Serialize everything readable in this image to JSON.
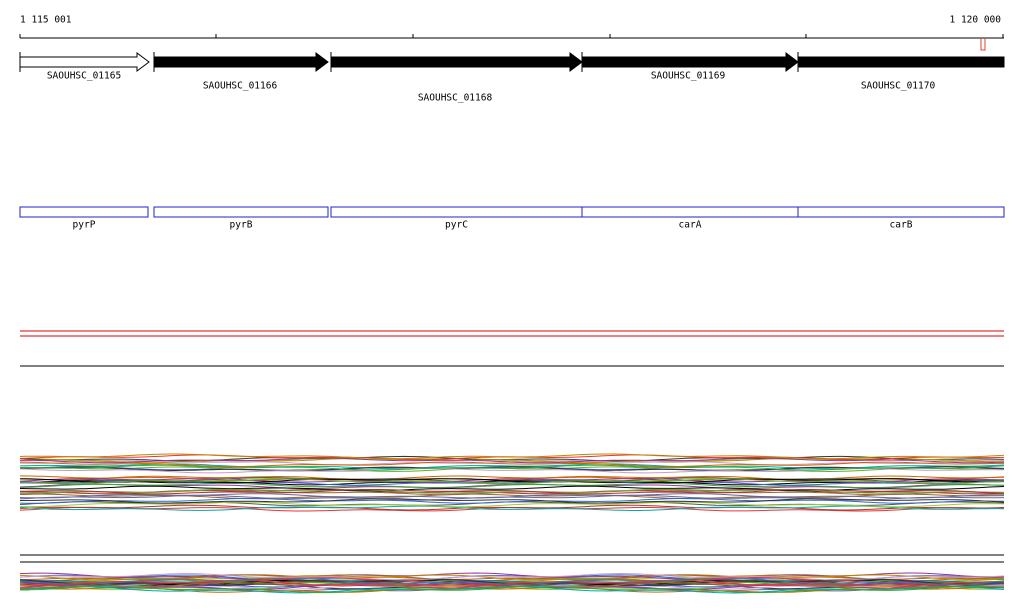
{
  "ruler": {
    "start": "1 115 001",
    "end": "1 120 000"
  },
  "genes": [
    {
      "label": "SAOUHSC_01165"
    },
    {
      "label": "SAOUHSC_01166"
    },
    {
      "label": "SAOUHSC_01168"
    },
    {
      "label": "SAOUHSC_01169"
    },
    {
      "label": "SAOUHSC_01170"
    }
  ],
  "features": [
    {
      "label": "pyrP"
    },
    {
      "label": "pyrB"
    },
    {
      "label": "pyrC"
    },
    {
      "label": "carA"
    },
    {
      "label": "carB"
    }
  ]
}
